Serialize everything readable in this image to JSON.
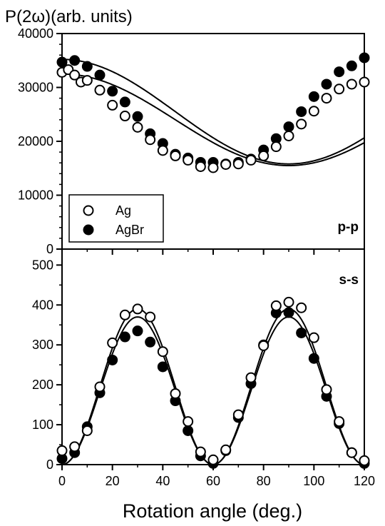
{
  "chart_data": [
    {
      "type": "scatter",
      "panel_label": "p-p",
      "ylabel": "P(2ω)(arb. units)",
      "xlim": [
        0,
        120
      ],
      "ylim": [
        0,
        40000
      ],
      "yticks": [
        0,
        10000,
        20000,
        30000,
        40000
      ],
      "ytick_labels": [
        "0",
        "10000",
        "20000",
        "30000",
        "40000"
      ],
      "legend": {
        "position": "bottom-left",
        "entries": [
          "Ag",
          "AgBr"
        ]
      },
      "series": [
        {
          "name": "Ag",
          "marker": "open-circle",
          "x": [
            0,
            2.5,
            5,
            7.5,
            10,
            15,
            20,
            25,
            30,
            35,
            40,
            45,
            50,
            55,
            60,
            65,
            70,
            75,
            80,
            85,
            90,
            95,
            100,
            105,
            110,
            115,
            120
          ],
          "y": [
            32800,
            33300,
            32300,
            31000,
            31300,
            29500,
            26700,
            24700,
            22600,
            20300,
            18300,
            17300,
            16500,
            15300,
            15100,
            15700,
            15800,
            16500,
            17300,
            19000,
            21000,
            23200,
            25600,
            28000,
            29700,
            30600,
            31000
          ]
        },
        {
          "name": "AgBr",
          "marker": "filled-circle",
          "x": [
            0,
            5,
            10,
            15,
            20,
            25,
            30,
            35,
            40,
            45,
            50,
            55,
            60,
            65,
            70,
            75,
            80,
            85,
            90,
            95,
            100,
            105,
            110,
            115,
            120
          ],
          "y": [
            34700,
            35000,
            33900,
            32300,
            29300,
            27300,
            24600,
            21400,
            19600,
            17600,
            16900,
            16100,
            16100,
            15800,
            16100,
            16700,
            18400,
            20500,
            22700,
            25500,
            28300,
            30600,
            32900,
            34000,
            35500
          ]
        }
      ],
      "fits": [
        {
          "series": "Ag",
          "offset": 24000,
          "amplitude": 8500,
          "phase_deg": 0
        },
        {
          "series": "AgBr",
          "offset": 25500,
          "amplitude": 9700,
          "phase_deg": 0
        }
      ]
    },
    {
      "type": "scatter",
      "panel_label": "s-s",
      "xlabel": "Rotation angle (deg.)",
      "xlim": [
        0,
        120
      ],
      "ylim": [
        0,
        540
      ],
      "xticks": [
        0,
        20,
        40,
        60,
        80,
        100,
        120
      ],
      "xtick_labels": [
        "0",
        "20",
        "40",
        "60",
        "80",
        "100",
        "120"
      ],
      "yticks": [
        0,
        100,
        200,
        300,
        400,
        500
      ],
      "ytick_labels": [
        "0",
        "100",
        "200",
        "300",
        "400",
        "500"
      ],
      "series": [
        {
          "name": "Ag",
          "marker": "open-circle",
          "x": [
            0,
            5,
            10,
            15,
            20,
            25,
            30,
            35,
            40,
            45,
            50,
            55,
            60,
            65,
            70,
            75,
            80,
            85,
            90,
            95,
            100,
            105,
            110,
            115,
            120
          ],
          "y": [
            35,
            45,
            85,
            195,
            305,
            375,
            390,
            370,
            283,
            178,
            108,
            32,
            12,
            37,
            125,
            218,
            298,
            398,
            407,
            393,
            318,
            188,
            108,
            30,
            10
          ]
        },
        {
          "name": "AgBr",
          "marker": "filled-circle",
          "x": [
            0,
            5,
            10,
            15,
            20,
            25,
            30,
            35,
            40,
            45,
            50,
            55,
            60,
            65,
            70,
            75,
            80,
            85,
            90,
            95,
            100,
            105,
            110,
            115,
            120
          ],
          "y": [
            15,
            30,
            95,
            180,
            262,
            320,
            335,
            307,
            245,
            160,
            85,
            22,
            3,
            35,
            118,
            203,
            300,
            380,
            381,
            330,
            266,
            171,
            103,
            30,
            3
          ]
        }
      ],
      "fits": [
        {
          "series": "Ag",
          "amplitude": 390
        },
        {
          "series": "AgBr",
          "amplitude": 370
        }
      ]
    }
  ]
}
